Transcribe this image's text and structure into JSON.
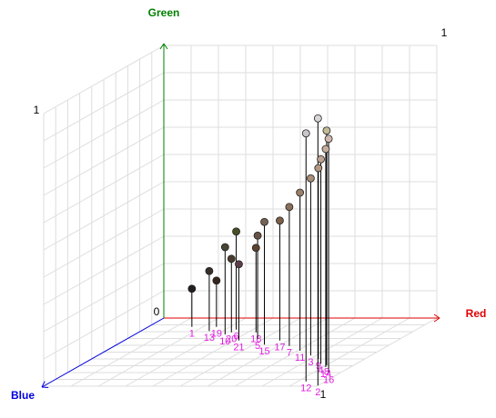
{
  "chart_data": {
    "type": "scatter3d",
    "x_label": "Red",
    "y_label": "Green",
    "z_label": "Blue",
    "xlim": [
      0,
      1
    ],
    "ylim": [
      0,
      1
    ],
    "zlim": [
      0,
      1
    ],
    "xticks": [
      1
    ],
    "yticks": [
      0,
      1
    ],
    "zticks": [
      1
    ],
    "x_color": "#e00000",
    "y_color": "#008000",
    "z_color": "#0000e0",
    "label_color": "#e020e0",
    "stem_color": "#000000",
    "labels": [
      "1",
      "13",
      "19",
      "10",
      "20",
      "6",
      "21",
      "18",
      "5",
      "15",
      "17",
      "7",
      "11",
      "3",
      "9",
      "4",
      "14",
      "16",
      "8",
      "12",
      "2"
    ],
    "x": [
      0.16,
      0.25,
      0.25,
      0.33,
      0.34,
      0.34,
      0.42,
      0.43,
      0.48,
      0.54,
      0.57,
      0.64,
      0.71,
      0.78,
      0.83,
      0.87,
      0.91,
      0.96,
      0.9,
      0.93,
      1.0
    ],
    "y": [
      0.14,
      0.22,
      0.17,
      0.32,
      0.27,
      0.36,
      0.28,
      0.31,
      0.38,
      0.45,
      0.44,
      0.51,
      0.58,
      0.65,
      0.7,
      0.75,
      0.8,
      0.86,
      0.86,
      0.91,
      0.98
    ],
    "z": [
      0.13,
      0.19,
      0.13,
      0.24,
      0.21,
      0.17,
      0.33,
      0.21,
      0.31,
      0.39,
      0.33,
      0.41,
      0.48,
      0.55,
      0.6,
      0.67,
      0.72,
      0.81,
      0.69,
      0.93,
      0.99
    ]
  }
}
